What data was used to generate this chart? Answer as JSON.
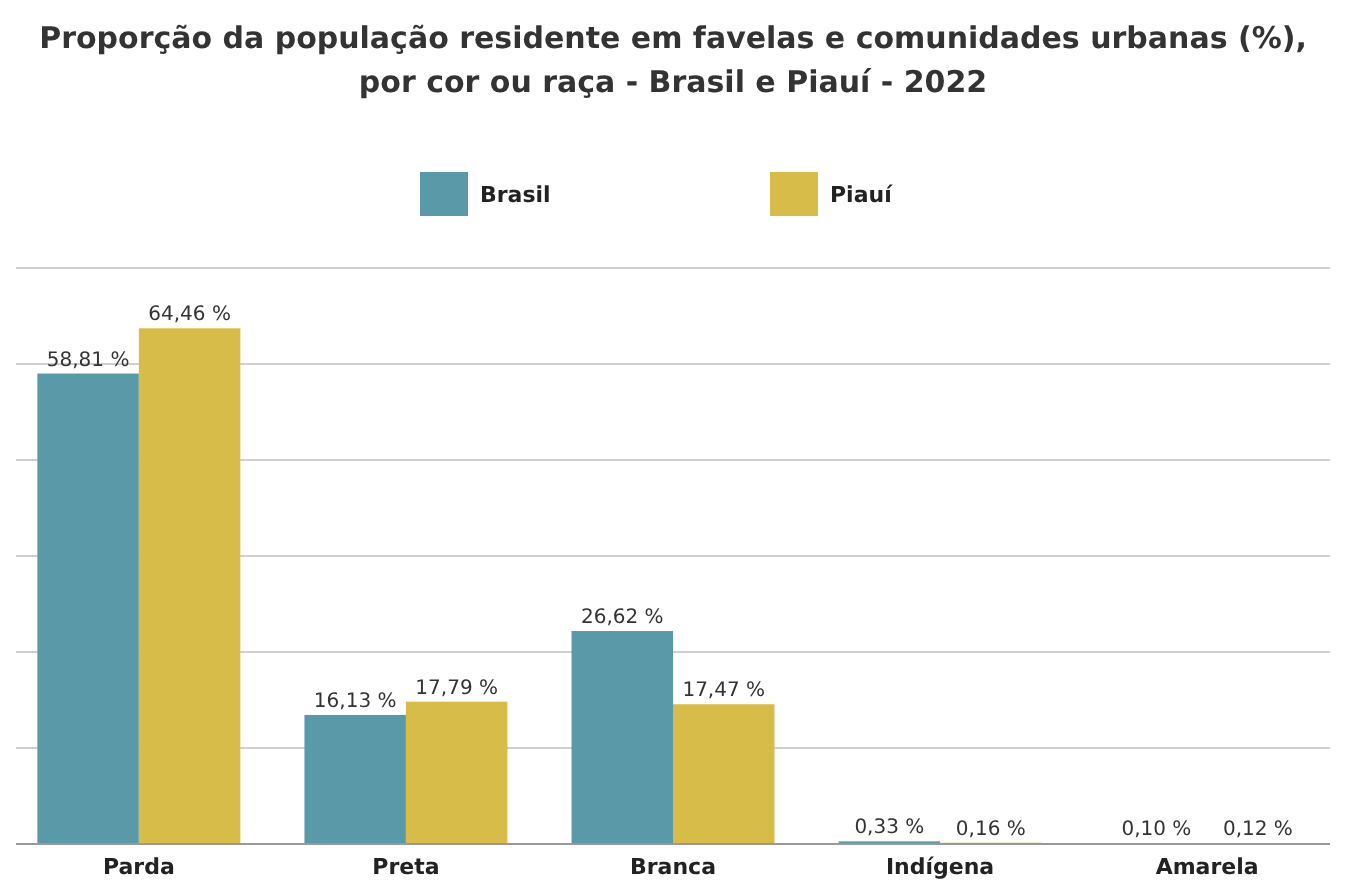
{
  "chart_data": {
    "type": "bar",
    "title": "Proporção da população residente em favelas e comunidades urbanas (%),\npor cor ou raça - Brasil e Piauí - 2022",
    "categories": [
      "Parda",
      "Preta",
      "Branca",
      "Indígena",
      "Amarela"
    ],
    "series": [
      {
        "name": "Brasil",
        "color": "#5a9aa8",
        "values": [
          58.81,
          16.13,
          26.62,
          0.33,
          0.1
        ],
        "value_labels": [
          "58,81 %",
          "16,13 %",
          "26,62 %",
          "0,33 %",
          "0,10 %"
        ]
      },
      {
        "name": "Piauí",
        "color": "#d8bc4a",
        "values": [
          64.46,
          17.79,
          17.47,
          0.16,
          0.12
        ],
        "value_labels": [
          "64,46 %",
          "17,79 %",
          "17,47 %",
          "0,16 %",
          "0,12 %"
        ]
      }
    ],
    "ylim": [
      0,
      72
    ],
    "yticks": [
      {
        "value": 0,
        "label": null
      },
      {
        "value": 12,
        "label": null
      },
      {
        "value": 24,
        "label": null
      },
      {
        "value": 36,
        "label": null
      },
      {
        "value": 48,
        "label": null
      },
      {
        "value": 60,
        "label": null
      },
      {
        "value": 72,
        "label": null
      }
    ],
    "grid": "y",
    "legend": "top",
    "tick_labels": "x"
  }
}
